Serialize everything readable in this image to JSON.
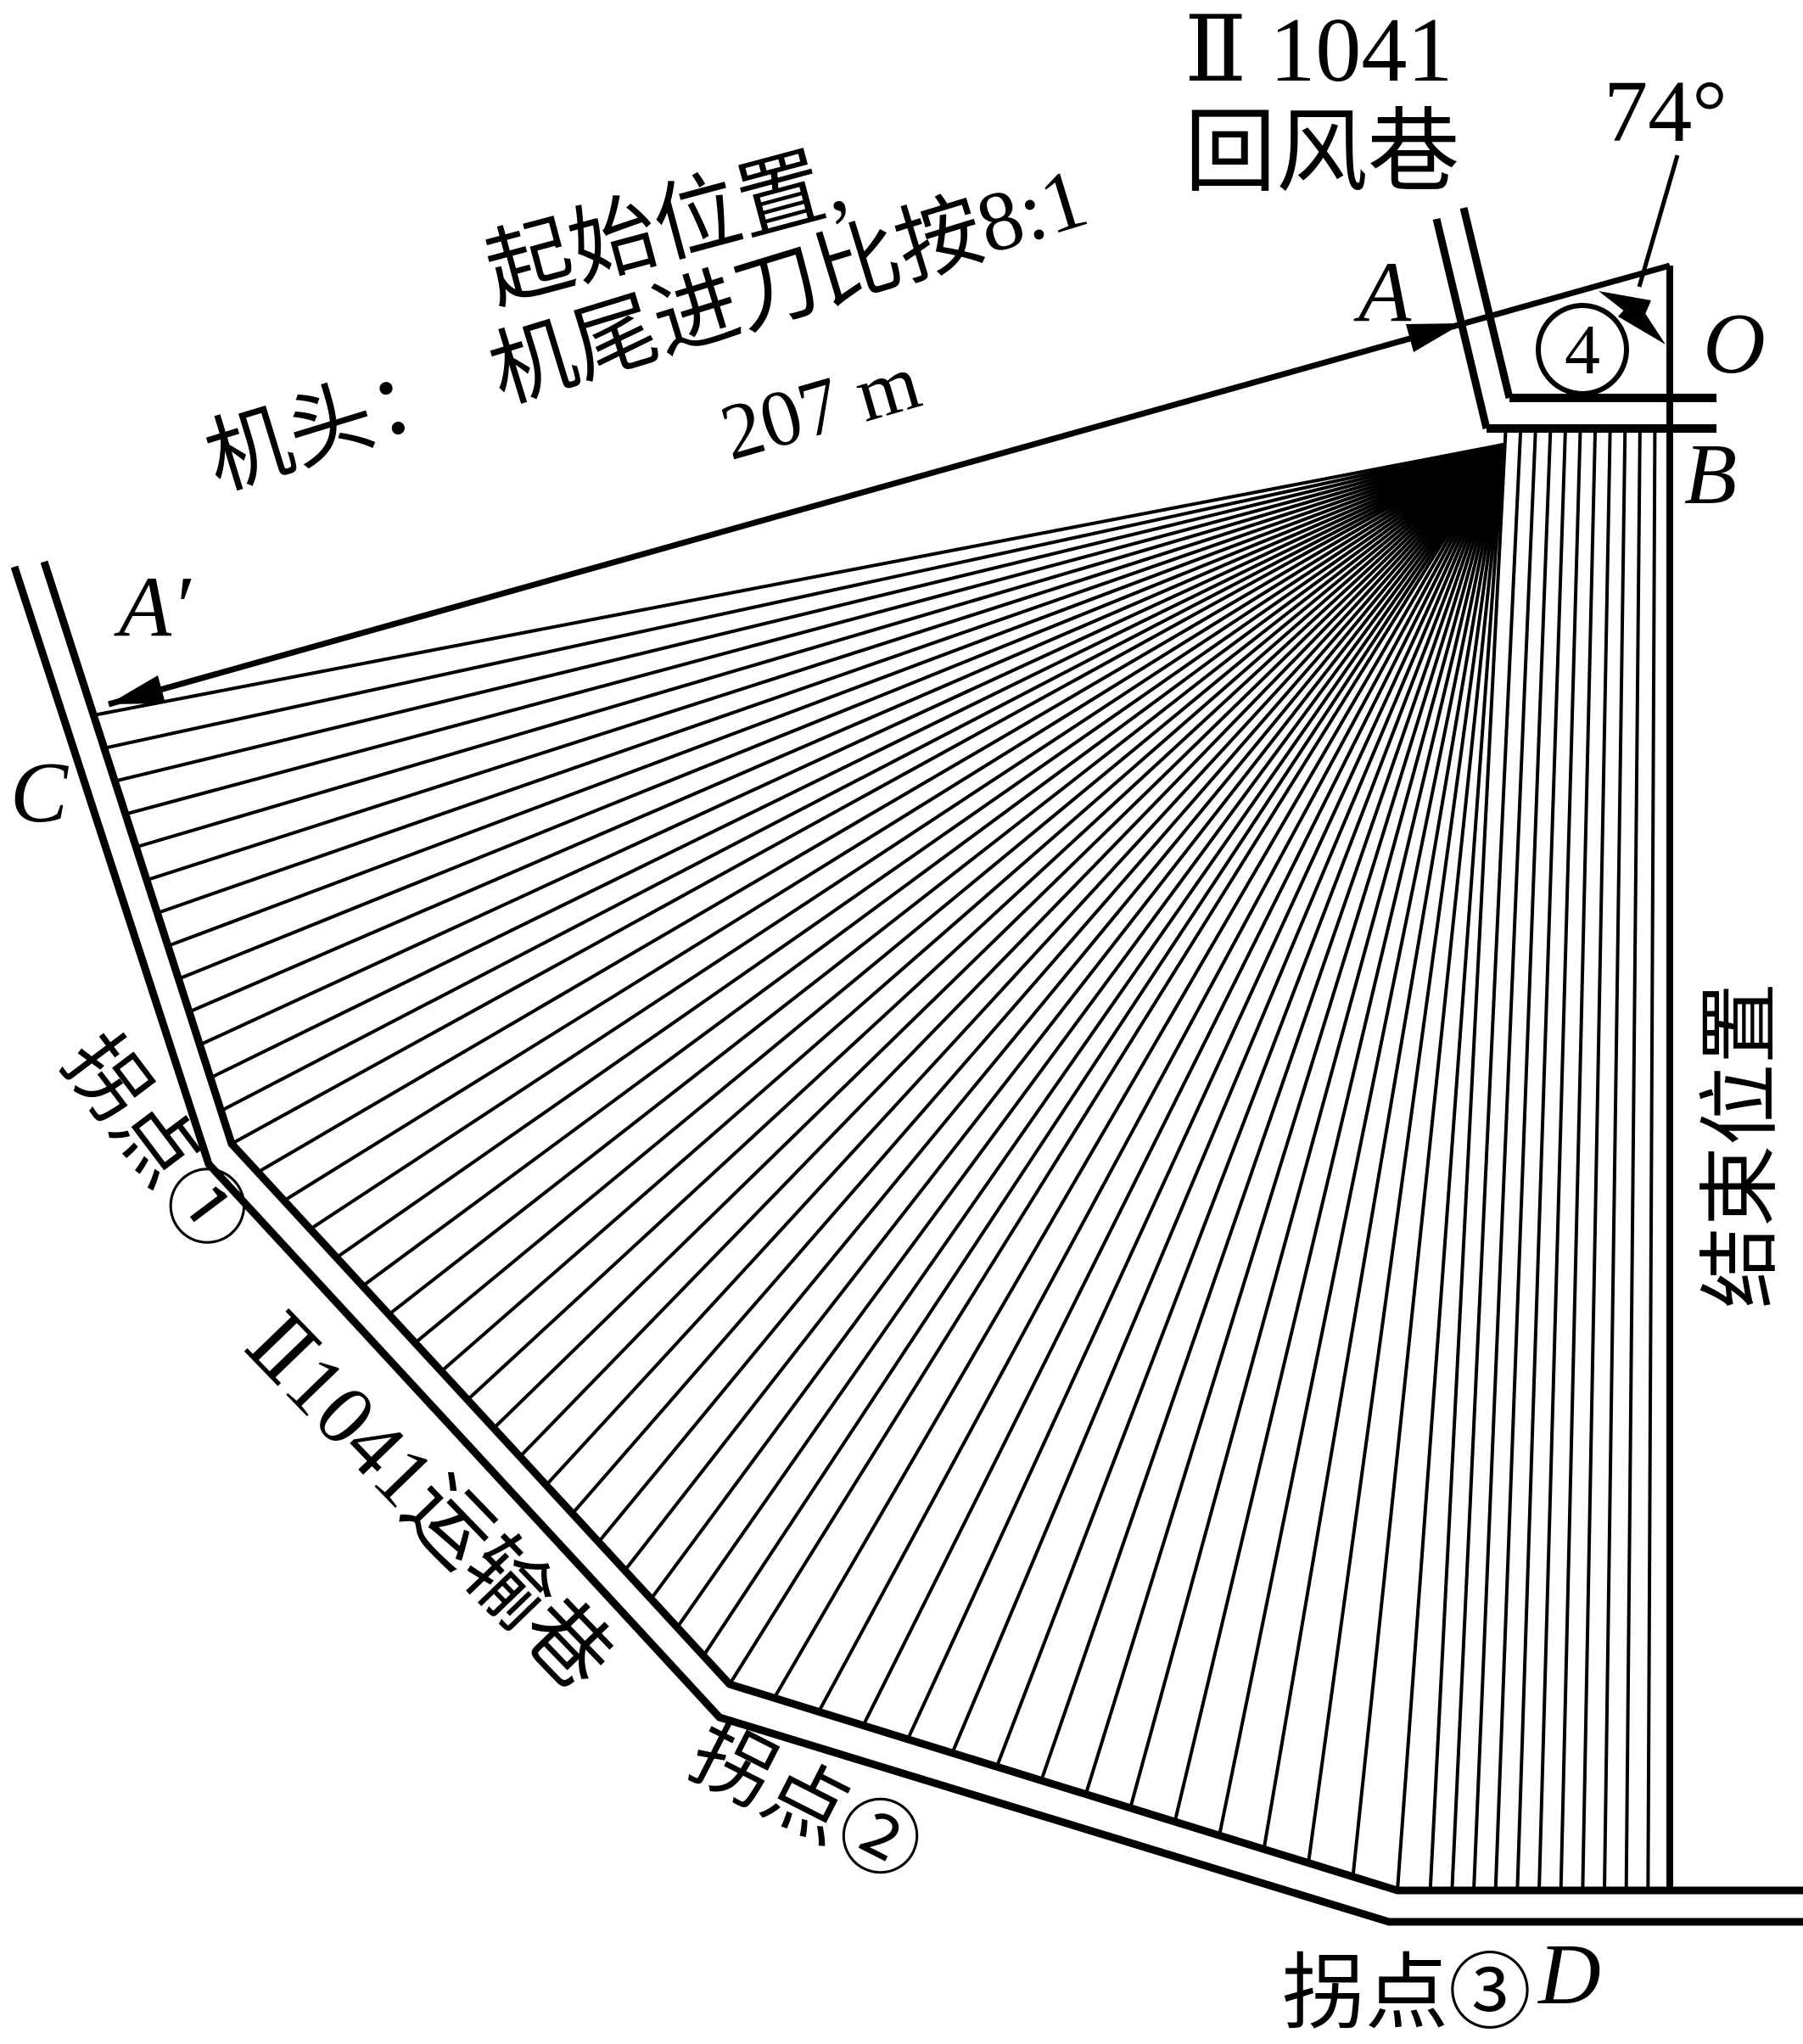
{
  "diagram": {
    "airway": {
      "line1": "Ⅱ 1041",
      "line2": "回风巷"
    },
    "angle_label": "74°",
    "start_note_line1": "起始位置,",
    "start_note_line2": "机头：　机尾进刀比按8:1",
    "distance_label": "207 m",
    "stage_badge": "4",
    "points": {
      "A": "A",
      "A_prime": "A′",
      "O": "O",
      "B": "B",
      "C": "C",
      "D": "D"
    },
    "turn1": "拐点①",
    "turn2": "拐点②",
    "turn3": "拐点③",
    "transport_roadway": "Ⅱ1041运输巷",
    "end_position": "结束位置",
    "colors": {
      "ink": "#000000",
      "background": "#ffffff"
    }
  }
}
